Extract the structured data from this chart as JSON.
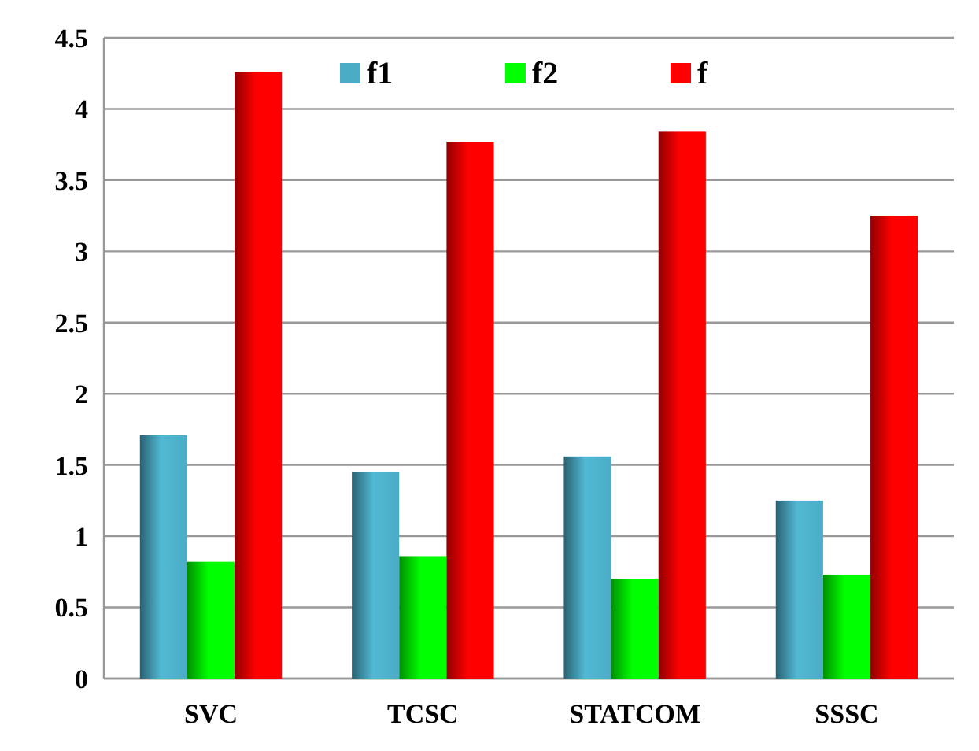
{
  "chart_data": {
    "type": "bar",
    "categories": [
      "SVC",
      "TCSC",
      "STATCOM",
      "SSSC"
    ],
    "series": [
      {
        "name": "f1",
        "color": "#4bacc6",
        "values": [
          1.71,
          1.45,
          1.56,
          1.25
        ]
      },
      {
        "name": "f2",
        "color": "#00ff00",
        "values": [
          0.82,
          0.86,
          0.7,
          0.73
        ]
      },
      {
        "name": "f",
        "color": "#ff0000",
        "values": [
          4.26,
          3.77,
          3.84,
          3.25
        ]
      }
    ],
    "ylim": [
      0,
      4.5
    ],
    "yticks": [
      0,
      0.5,
      1,
      1.5,
      2,
      2.5,
      3,
      3.5,
      4,
      4.5
    ],
    "grid": "y",
    "legend": "top"
  }
}
